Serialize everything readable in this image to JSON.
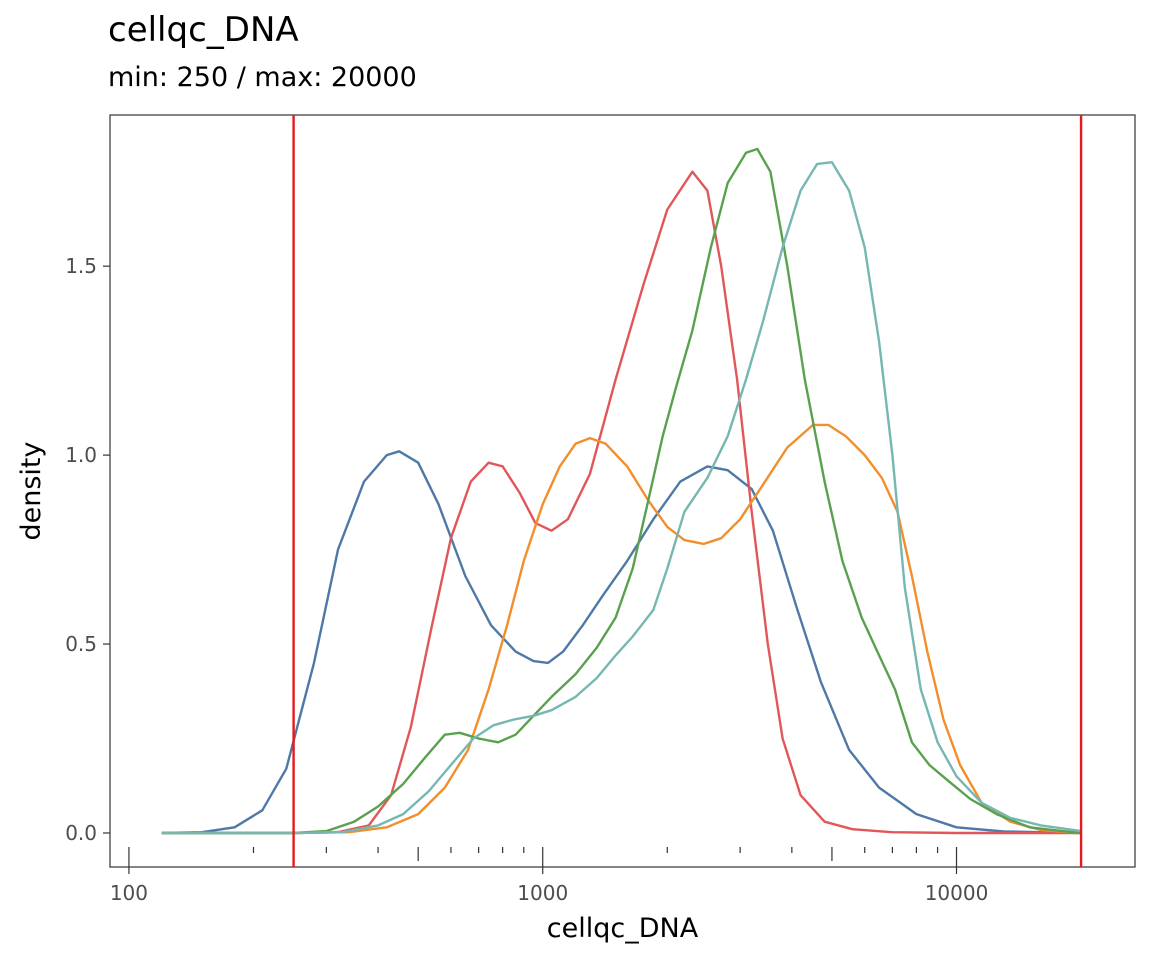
{
  "chart_data": {
    "type": "line",
    "title": "cellqc_DNA",
    "subtitle": "min: 250 / max: 20000",
    "xlabel": "cellqc_DNA",
    "ylabel": "density",
    "x_scale": "log10",
    "xlim": [
      90,
      27000
    ],
    "ylim": [
      -0.09,
      1.9
    ],
    "x_ticks": [
      100,
      1000,
      10000
    ],
    "x_tick_labels": [
      "100",
      "1000",
      "10000"
    ],
    "y_ticks": [
      0,
      0.5,
      1,
      1.5
    ],
    "y_tick_labels": [
      "0.0",
      "0.5",
      "1.0",
      "1.5"
    ],
    "grid": false,
    "legend": "none",
    "thresholds": [
      {
        "x": 250,
        "color": "#e41a1c"
      },
      {
        "x": 20000,
        "color": "#e41a1c"
      }
    ],
    "series": [
      {
        "color": "#4e79a7",
        "points": [
          [
            120,
            0
          ],
          [
            150,
            0.002
          ],
          [
            180,
            0.015
          ],
          [
            210,
            0.06
          ],
          [
            240,
            0.17
          ],
          [
            280,
            0.45
          ],
          [
            320,
            0.75
          ],
          [
            370,
            0.93
          ],
          [
            420,
            1.0
          ],
          [
            450,
            1.01
          ],
          [
            500,
            0.98
          ],
          [
            560,
            0.87
          ],
          [
            650,
            0.68
          ],
          [
            750,
            0.55
          ],
          [
            860,
            0.48
          ],
          [
            950,
            0.455
          ],
          [
            1030,
            0.45
          ],
          [
            1120,
            0.48
          ],
          [
            1250,
            0.55
          ],
          [
            1400,
            0.63
          ],
          [
            1600,
            0.72
          ],
          [
            1850,
            0.83
          ],
          [
            2150,
            0.93
          ],
          [
            2500,
            0.97
          ],
          [
            2800,
            0.96
          ],
          [
            3200,
            0.91
          ],
          [
            3600,
            0.8
          ],
          [
            4100,
            0.6
          ],
          [
            4700,
            0.4
          ],
          [
            5500,
            0.22
          ],
          [
            6500,
            0.12
          ],
          [
            8000,
            0.05
          ],
          [
            10000,
            0.015
          ],
          [
            13000,
            0.004
          ],
          [
            20000,
            0
          ]
        ]
      },
      {
        "color": "#e15759",
        "points": [
          [
            120,
            0
          ],
          [
            250,
            0
          ],
          [
            320,
            0.002
          ],
          [
            380,
            0.02
          ],
          [
            430,
            0.1
          ],
          [
            480,
            0.28
          ],
          [
            540,
            0.55
          ],
          [
            600,
            0.78
          ],
          [
            670,
            0.93
          ],
          [
            740,
            0.98
          ],
          [
            800,
            0.97
          ],
          [
            880,
            0.9
          ],
          [
            960,
            0.82
          ],
          [
            1050,
            0.8
          ],
          [
            1150,
            0.83
          ],
          [
            1300,
            0.95
          ],
          [
            1500,
            1.2
          ],
          [
            1750,
            1.45
          ],
          [
            2000,
            1.65
          ],
          [
            2300,
            1.75
          ],
          [
            2500,
            1.7
          ],
          [
            2700,
            1.5
          ],
          [
            2950,
            1.2
          ],
          [
            3200,
            0.85
          ],
          [
            3500,
            0.5
          ],
          [
            3800,
            0.25
          ],
          [
            4200,
            0.1
          ],
          [
            4800,
            0.03
          ],
          [
            5600,
            0.01
          ],
          [
            7000,
            0.002
          ],
          [
            10000,
            0
          ],
          [
            20000,
            0
          ]
        ]
      },
      {
        "color": "#f28e2b",
        "points": [
          [
            120,
            0
          ],
          [
            250,
            0
          ],
          [
            340,
            0.002
          ],
          [
            420,
            0.015
          ],
          [
            500,
            0.05
          ],
          [
            580,
            0.12
          ],
          [
            660,
            0.22
          ],
          [
            740,
            0.38
          ],
          [
            820,
            0.55
          ],
          [
            900,
            0.72
          ],
          [
            1000,
            0.87
          ],
          [
            1100,
            0.97
          ],
          [
            1200,
            1.03
          ],
          [
            1300,
            1.045
          ],
          [
            1420,
            1.03
          ],
          [
            1600,
            0.97
          ],
          [
            1800,
            0.88
          ],
          [
            2000,
            0.81
          ],
          [
            2200,
            0.775
          ],
          [
            2450,
            0.765
          ],
          [
            2700,
            0.78
          ],
          [
            3000,
            0.83
          ],
          [
            3400,
            0.92
          ],
          [
            3900,
            1.02
          ],
          [
            4500,
            1.08
          ],
          [
            4900,
            1.08
          ],
          [
            5400,
            1.05
          ],
          [
            6000,
            1.0
          ],
          [
            6600,
            0.94
          ],
          [
            7200,
            0.85
          ],
          [
            7800,
            0.68
          ],
          [
            8500,
            0.48
          ],
          [
            9300,
            0.3
          ],
          [
            10200,
            0.18
          ],
          [
            11500,
            0.08
          ],
          [
            13500,
            0.03
          ],
          [
            16000,
            0.008
          ],
          [
            20000,
            0
          ]
        ]
      },
      {
        "color": "#59a14f",
        "points": [
          [
            120,
            0
          ],
          [
            250,
            0
          ],
          [
            300,
            0.005
          ],
          [
            350,
            0.03
          ],
          [
            400,
            0.07
          ],
          [
            460,
            0.13
          ],
          [
            520,
            0.2
          ],
          [
            580,
            0.26
          ],
          [
            630,
            0.265
          ],
          [
            700,
            0.25
          ],
          [
            780,
            0.24
          ],
          [
            860,
            0.26
          ],
          [
            950,
            0.31
          ],
          [
            1050,
            0.36
          ],
          [
            1200,
            0.42
          ],
          [
            1350,
            0.49
          ],
          [
            1500,
            0.57
          ],
          [
            1650,
            0.7
          ],
          [
            1800,
            0.88
          ],
          [
            1950,
            1.05
          ],
          [
            2100,
            1.18
          ],
          [
            2300,
            1.33
          ],
          [
            2550,
            1.55
          ],
          [
            2800,
            1.72
          ],
          [
            3100,
            1.8
          ],
          [
            3300,
            1.81
          ],
          [
            3550,
            1.75
          ],
          [
            3900,
            1.5
          ],
          [
            4300,
            1.2
          ],
          [
            4800,
            0.93
          ],
          [
            5300,
            0.72
          ],
          [
            5900,
            0.57
          ],
          [
            6500,
            0.47
          ],
          [
            7100,
            0.38
          ],
          [
            7800,
            0.24
          ],
          [
            8600,
            0.18
          ],
          [
            9500,
            0.14
          ],
          [
            10800,
            0.09
          ],
          [
            12500,
            0.05
          ],
          [
            15000,
            0.015
          ],
          [
            18000,
            0.005
          ],
          [
            20000,
            0
          ]
        ]
      },
      {
        "color": "#76b7b2",
        "points": [
          [
            120,
            0
          ],
          [
            250,
            0
          ],
          [
            330,
            0.003
          ],
          [
            400,
            0.02
          ],
          [
            460,
            0.05
          ],
          [
            530,
            0.11
          ],
          [
            600,
            0.18
          ],
          [
            680,
            0.25
          ],
          [
            760,
            0.285
          ],
          [
            850,
            0.3
          ],
          [
            950,
            0.31
          ],
          [
            1050,
            0.325
          ],
          [
            1200,
            0.36
          ],
          [
            1350,
            0.41
          ],
          [
            1500,
            0.47
          ],
          [
            1650,
            0.52
          ],
          [
            1850,
            0.59
          ],
          [
            2000,
            0.7
          ],
          [
            2200,
            0.85
          ],
          [
            2500,
            0.94
          ],
          [
            2800,
            1.05
          ],
          [
            3100,
            1.2
          ],
          [
            3400,
            1.35
          ],
          [
            3800,
            1.55
          ],
          [
            4200,
            1.7
          ],
          [
            4600,
            1.77
          ],
          [
            5000,
            1.775
          ],
          [
            5500,
            1.7
          ],
          [
            6000,
            1.55
          ],
          [
            6500,
            1.3
          ],
          [
            7000,
            1.0
          ],
          [
            7500,
            0.65
          ],
          [
            8200,
            0.38
          ],
          [
            9000,
            0.24
          ],
          [
            10000,
            0.15
          ],
          [
            11500,
            0.08
          ],
          [
            13500,
            0.04
          ],
          [
            16000,
            0.02
          ],
          [
            20000,
            0.005
          ]
        ]
      }
    ]
  }
}
